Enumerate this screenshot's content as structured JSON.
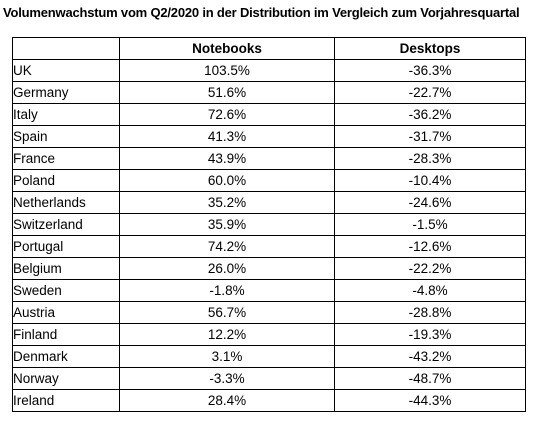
{
  "title": "Volumenwachstum vom Q2/2020 in der Distribution im Vergleich zum Vorjahresquartal",
  "chart_data": {
    "type": "table",
    "title": "Volumenwachstum vom Q2/2020 in der Distribution im Vergleich zum Vorjahresquartal",
    "columns": [
      "",
      "Notebooks",
      "Desktops"
    ],
    "rows": [
      {
        "country": "UK",
        "notebooks": "103.5%",
        "desktops": "-36.3%"
      },
      {
        "country": "Germany",
        "notebooks": "51.6%",
        "desktops": "-22.7%"
      },
      {
        "country": "Italy",
        "notebooks": "72.6%",
        "desktops": "-36.2%"
      },
      {
        "country": "Spain",
        "notebooks": "41.3%",
        "desktops": "-31.7%"
      },
      {
        "country": "France",
        "notebooks": "43.9%",
        "desktops": "-28.3%"
      },
      {
        "country": "Poland",
        "notebooks": "60.0%",
        "desktops": "-10.4%"
      },
      {
        "country": "Netherlands",
        "notebooks": "35.2%",
        "desktops": "-24.6%"
      },
      {
        "country": "Switzerland",
        "notebooks": "35.9%",
        "desktops": "-1.5%"
      },
      {
        "country": "Portugal",
        "notebooks": "74.2%",
        "desktops": "-12.6%"
      },
      {
        "country": "Belgium",
        "notebooks": "26.0%",
        "desktops": "-22.2%"
      },
      {
        "country": "Sweden",
        "notebooks": "-1.8%",
        "desktops": "-4.8%"
      },
      {
        "country": "Austria",
        "notebooks": "56.7%",
        "desktops": "-28.8%"
      },
      {
        "country": "Finland",
        "notebooks": "12.2%",
        "desktops": "-19.3%"
      },
      {
        "country": "Denmark",
        "notebooks": "3.1%",
        "desktops": "-43.2%"
      },
      {
        "country": "Norway",
        "notebooks": "-3.3%",
        "desktops": "-48.7%"
      },
      {
        "country": "Ireland",
        "notebooks": "28.4%",
        "desktops": "-44.3%"
      }
    ]
  }
}
